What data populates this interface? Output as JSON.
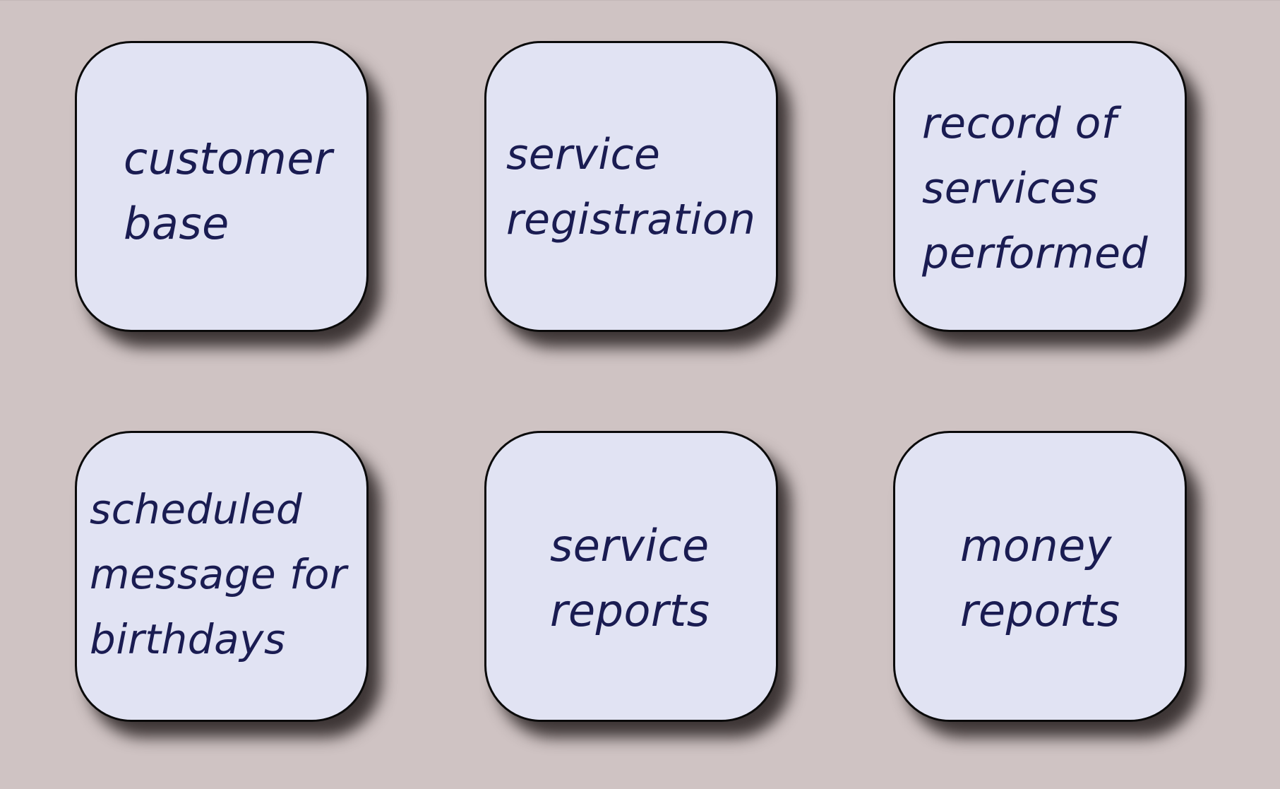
{
  "tiles": [
    {
      "lines": [
        "customer",
        "base"
      ]
    },
    {
      "lines": [
        "service",
        "registration"
      ]
    },
    {
      "lines": [
        "record of",
        "services",
        "performed"
      ]
    },
    {
      "lines": [
        "scheduled",
        "message for",
        "birthdays"
      ]
    },
    {
      "lines": [
        "service",
        "reports"
      ]
    },
    {
      "lines": [
        "money",
        "reports"
      ]
    }
  ],
  "colors": {
    "background": "#cfc3c3",
    "tile_fill": "#e1e3f3",
    "tile_border": "#0a0a0a",
    "text": "#1a1c52"
  }
}
